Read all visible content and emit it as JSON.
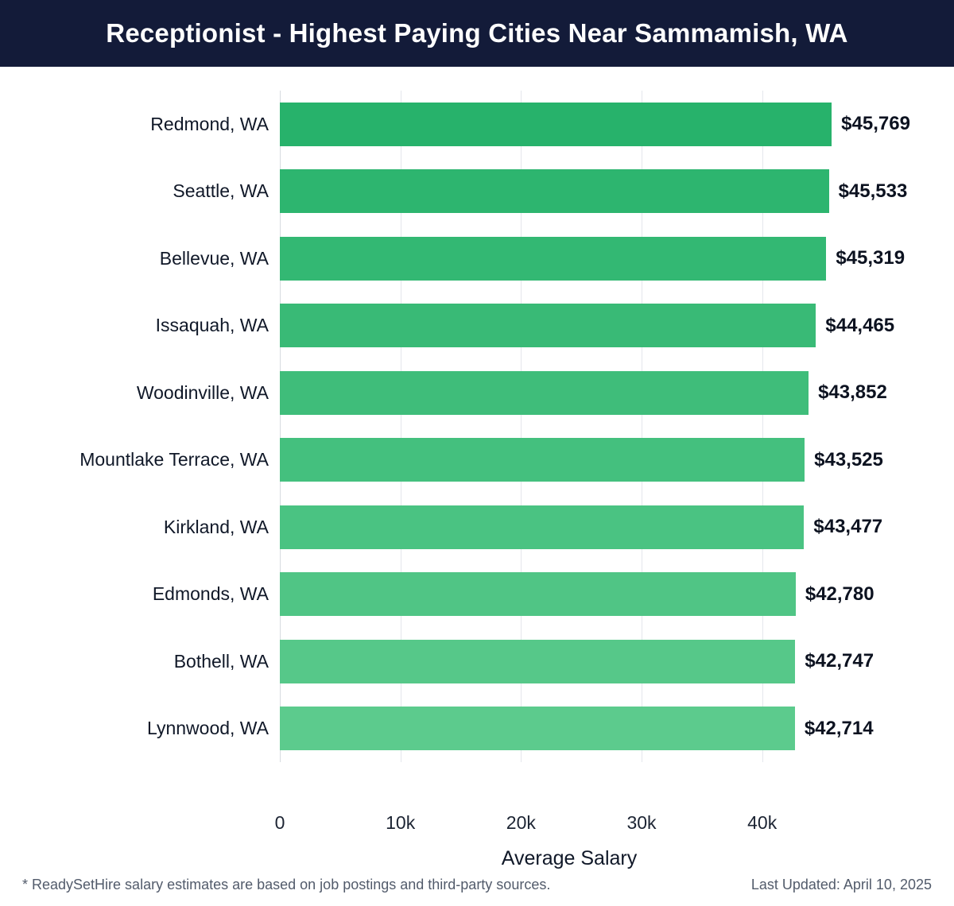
{
  "header": {
    "title": "Receptionist - Highest Paying Cities Near Sammamish, WA"
  },
  "chart_data": {
    "type": "bar",
    "orientation": "horizontal",
    "title": "Receptionist - Highest Paying Cities Near Sammamish, WA",
    "categories": [
      "Redmond, WA",
      "Seattle, WA",
      "Bellevue, WA",
      "Issaquah, WA",
      "Woodinville, WA",
      "Mountlake Terrace, WA",
      "Kirkland, WA",
      "Edmonds, WA",
      "Bothell, WA",
      "Lynnwood, WA"
    ],
    "values": [
      45769,
      45533,
      45319,
      44465,
      43852,
      43525,
      43477,
      42780,
      42747,
      42714
    ],
    "value_labels": [
      "$45,769",
      "$45,533",
      "$45,319",
      "$44,465",
      "$43,852",
      "$43,525",
      "$43,477",
      "$42,780",
      "$42,747",
      "$42,714"
    ],
    "xlabel": "Average Salary",
    "xlim": [
      0,
      48000
    ],
    "xticks": [
      {
        "value": 0,
        "label": "0"
      },
      {
        "value": 10000,
        "label": "10k"
      },
      {
        "value": 20000,
        "label": "20k"
      },
      {
        "value": 30000,
        "label": "30k"
      },
      {
        "value": 40000,
        "label": "40k"
      }
    ],
    "grid": true,
    "legend": "none",
    "bar_color_start": "#27b26b",
    "bar_color_end": "#5ccb8d"
  },
  "footer": {
    "note": "* ReadySetHire salary estimates are based on job postings and third-party sources.",
    "updated": "Last Updated: April 10, 2025"
  },
  "colors": {
    "header_bg": "#131b39",
    "gridline": "#e4e7ec",
    "text": "#101828"
  }
}
